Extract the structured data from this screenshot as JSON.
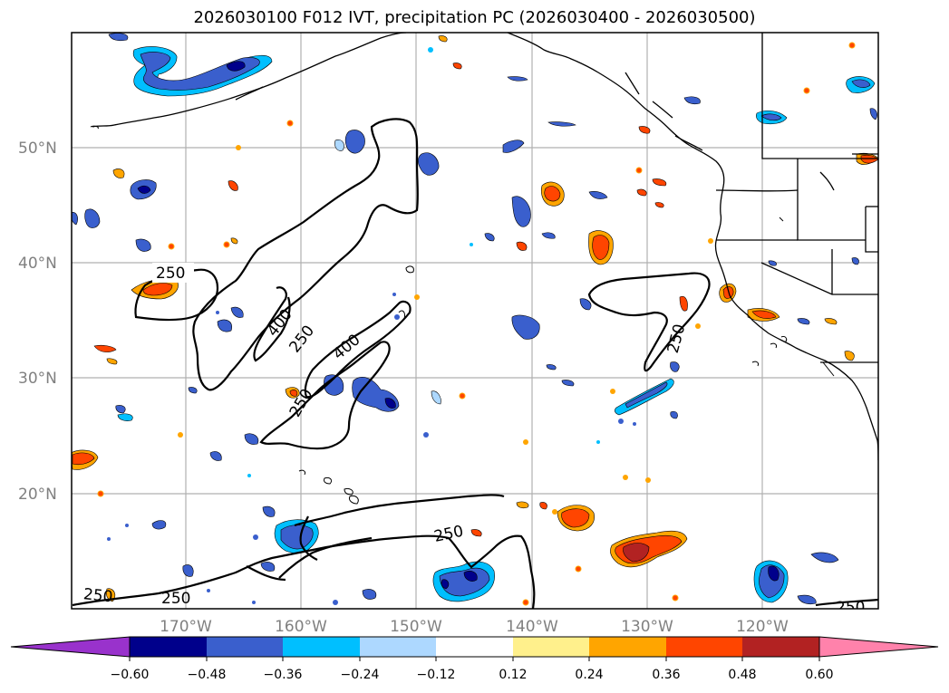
{
  "title": "2026030100 F012 IVT, precipitation PC (2026030400 - 2026030500)",
  "lat_labels": [
    "50°N",
    "40°N",
    "30°N",
    "20°N"
  ],
  "lon_labels": [
    "170°W",
    "160°W",
    "150°W",
    "140°W",
    "130°W",
    "120°W"
  ],
  "contour_labels": [
    "250",
    "400",
    "250",
    "400",
    "250",
    "250",
    "250",
    "250",
    "250",
    "250"
  ],
  "colorbar": {
    "colors": [
      "#9932cc",
      "#00008b",
      "#3a5fcd",
      "#00bfff",
      "#add8ff",
      "#ffffff",
      "#fff08c",
      "#ffa500",
      "#ff4500",
      "#b22222",
      "#ff82ab"
    ],
    "tick_labels": [
      "−0.60",
      "−0.48",
      "−0.36",
      "−0.24",
      "−0.12",
      "0.12",
      "0.24",
      "0.36",
      "0.48",
      "0.60"
    ]
  }
}
